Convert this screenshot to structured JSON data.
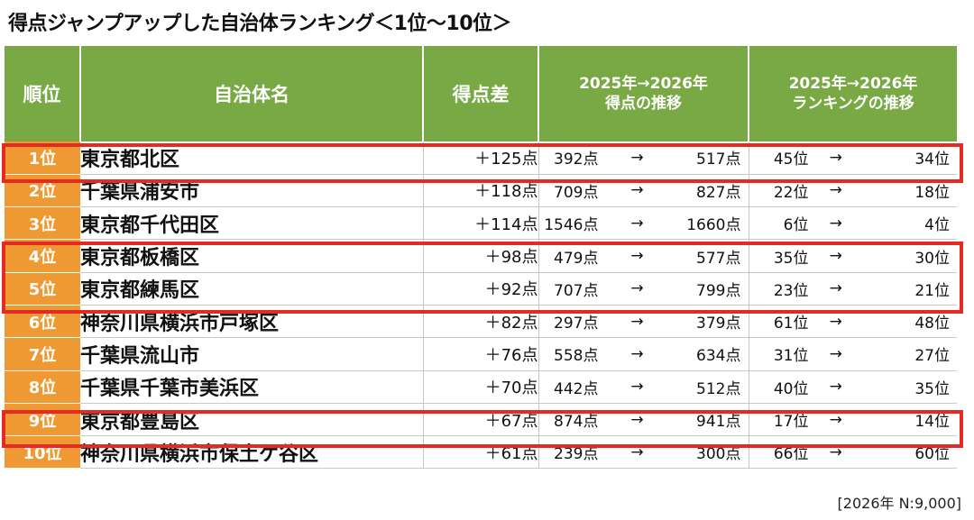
{
  "title": "得点ジャンプアップした自治体ランキング＜1位～10位＞",
  "headers": {
    "rank": "順位",
    "name": "自治体名",
    "diff": "得点差",
    "score_line1": "2025年→2026年",
    "score_line2": "得点の推移",
    "rank_line1": "2025年→2026年",
    "rank_line2": "ランキングの推移"
  },
  "arrow": "→",
  "rows": [
    {
      "rank": "1位",
      "name": "東京都北区",
      "diff": "＋125点",
      "s2025": "392点",
      "s2026": "517点",
      "r2025": "45位",
      "r2026": "34位"
    },
    {
      "rank": "2位",
      "name": "千葉県浦安市",
      "diff": "＋118点",
      "s2025": "709点",
      "s2026": "827点",
      "r2025": "22位",
      "r2026": "18位"
    },
    {
      "rank": "3位",
      "name": "東京都千代田区",
      "diff": "＋114点",
      "s2025": "1546点",
      "s2026": "1660点",
      "r2025": "6位",
      "r2026": "4位"
    },
    {
      "rank": "4位",
      "name": "東京都板橋区",
      "diff": "＋98点",
      "s2025": "479点",
      "s2026": "577点",
      "r2025": "35位",
      "r2026": "30位"
    },
    {
      "rank": "5位",
      "name": "東京都練馬区",
      "diff": "＋92点",
      "s2025": "707点",
      "s2026": "799点",
      "r2025": "23位",
      "r2026": "21位"
    },
    {
      "rank": "6位",
      "name": "神奈川県横浜市戸塚区",
      "diff": "＋82点",
      "s2025": "297点",
      "s2026": "379点",
      "r2025": "61位",
      "r2026": "48位"
    },
    {
      "rank": "7位",
      "name": "千葉県流山市",
      "diff": "＋76点",
      "s2025": "558点",
      "s2026": "634点",
      "r2025": "31位",
      "r2026": "27位"
    },
    {
      "rank": "8位",
      "name": "千葉県千葉市美浜区",
      "diff": "＋70点",
      "s2025": "442点",
      "s2026": "512点",
      "r2025": "40位",
      "r2026": "35位"
    },
    {
      "rank": "9位",
      "name": "東京都豊島区",
      "diff": "＋67点",
      "s2025": "874点",
      "s2026": "941点",
      "r2025": "17位",
      "r2026": "14位"
    },
    {
      "rank": "10位",
      "name": "神奈川県横浜市保土ケ谷区",
      "diff": "＋61点",
      "s2025": "239点",
      "s2026": "300点",
      "r2025": "66位",
      "r2026": "60位"
    }
  ],
  "highlight_colors": {
    "border": "#e32b23",
    "header": "#78a944",
    "rank_cell": "#ef9932"
  },
  "note": "[2026年 N:9,000]"
}
